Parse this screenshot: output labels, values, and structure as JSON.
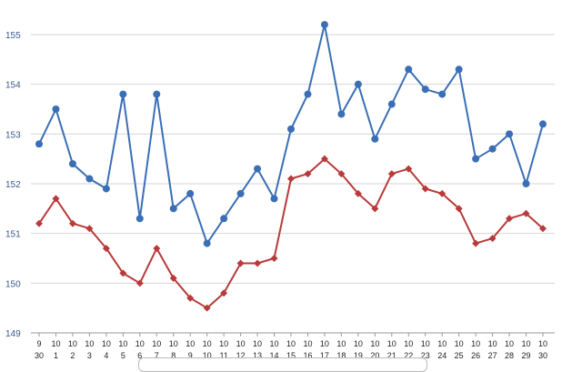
{
  "chart_data": {
    "type": "line",
    "title": "",
    "xlabel": "",
    "ylabel": "",
    "ylim": [
      149,
      155.5
    ],
    "yticks": [
      "149",
      "150",
      "151",
      "152",
      "153",
      "154",
      "155"
    ],
    "grid": "horizontal",
    "x": [
      {
        "month": "9",
        "day": "30"
      },
      {
        "month": "10",
        "day": "1"
      },
      {
        "month": "10",
        "day": "2"
      },
      {
        "month": "10",
        "day": "3"
      },
      {
        "month": "10",
        "day": "4"
      },
      {
        "month": "10",
        "day": "5"
      },
      {
        "month": "10",
        "day": "6"
      },
      {
        "month": "10",
        "day": "7"
      },
      {
        "month": "10",
        "day": "8"
      },
      {
        "month": "10",
        "day": "9"
      },
      {
        "month": "10",
        "day": "10"
      },
      {
        "month": "10",
        "day": "11"
      },
      {
        "month": "10",
        "day": "12"
      },
      {
        "month": "10",
        "day": "13"
      },
      {
        "month": "10",
        "day": "14"
      },
      {
        "month": "10",
        "day": "15"
      },
      {
        "month": "10",
        "day": "16"
      },
      {
        "month": "10",
        "day": "17"
      },
      {
        "month": "10",
        "day": "18"
      },
      {
        "month": "10",
        "day": "19"
      },
      {
        "month": "10",
        "day": "20"
      },
      {
        "month": "10",
        "day": "21"
      },
      {
        "month": "10",
        "day": "22"
      },
      {
        "month": "10",
        "day": "23"
      },
      {
        "month": "10",
        "day": "24"
      },
      {
        "month": "10",
        "day": "25"
      },
      {
        "month": "10",
        "day": "26"
      },
      {
        "month": "10",
        "day": "27"
      },
      {
        "month": "10",
        "day": "28"
      },
      {
        "month": "10",
        "day": "29"
      },
      {
        "month": "10",
        "day": "30"
      }
    ],
    "series": [
      {
        "color": "#3a6fb5",
        "marker": "circle",
        "values": [
          152.8,
          153.5,
          152.4,
          152.1,
          151.9,
          153.8,
          151.3,
          153.8,
          151.5,
          151.8,
          150.8,
          151.3,
          151.8,
          152.3,
          151.7,
          153.1,
          153.8,
          155.2,
          153.4,
          154.0,
          152.9,
          153.6,
          154.3,
          153.9,
          153.8,
          154.3,
          152.5,
          152.7,
          153.0,
          152.0,
          153.2
        ]
      },
      {
        "color": "#b93a3a",
        "marker": "diamond",
        "values": [
          151.2,
          151.7,
          151.2,
          151.1,
          150.7,
          150.2,
          150.0,
          150.7,
          150.1,
          149.7,
          149.5,
          149.8,
          150.4,
          150.4,
          150.5,
          152.1,
          152.2,
          152.5,
          152.2,
          151.8,
          151.5,
          152.2,
          152.3,
          151.9,
          151.8,
          151.5,
          150.8,
          150.9,
          151.3,
          151.4,
          151.1
        ]
      }
    ]
  }
}
